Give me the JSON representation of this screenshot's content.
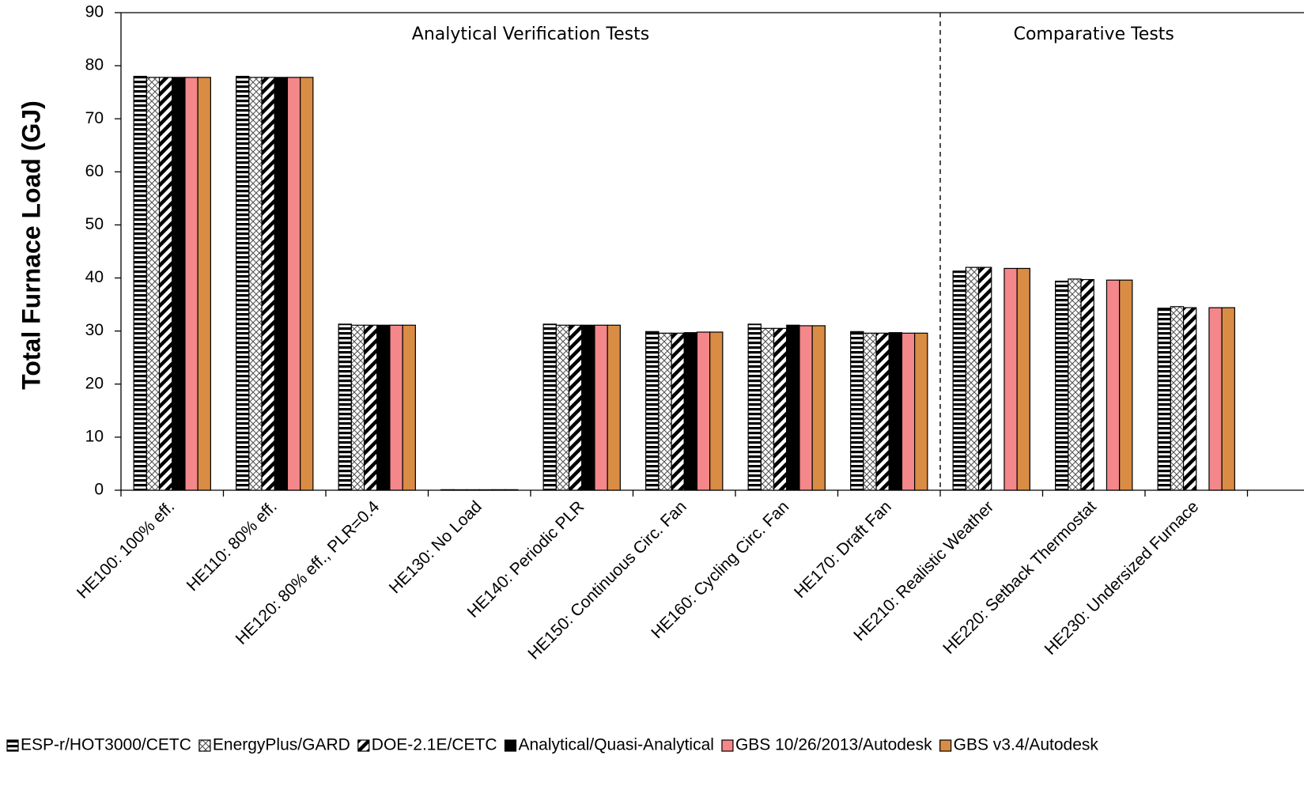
{
  "chart_data": {
    "type": "bar",
    "title": "",
    "xlabel": "",
    "ylabel": "Total Furnace Load (GJ)",
    "ylim": [
      0,
      90
    ],
    "yticks": [
      0,
      10,
      20,
      30,
      40,
      50,
      60,
      70,
      80,
      90
    ],
    "grid": false,
    "legend_position": "bottom",
    "categories": [
      "HE100: 100% eff.",
      "HE110: 80% eff.",
      "HE120: 80% eff., PLR=0.4",
      "HE130: No Load",
      "HE140: Periodic PLR",
      "HE150: Continuous Circ. Fan",
      "HE160: Cycling Circ. Fan",
      "HE170: Draft Fan",
      "HE210: Realistic Weather",
      "HE220: Setback Thermostat",
      "HE230: Undersized Furnace"
    ],
    "regions": [
      {
        "label": "Analytical Verification Tests",
        "from": 0,
        "to": 7
      },
      {
        "label": "Comparative Tests",
        "from": 8,
        "to": 10
      }
    ],
    "series": [
      {
        "name": "ESP-r/HOT3000/CETC",
        "pattern": "horizontal-stripes",
        "color": "#000000",
        "values": [
          78.0,
          78.0,
          31.3,
          0.1,
          31.3,
          29.9,
          31.3,
          29.9,
          41.3,
          39.4,
          34.3
        ]
      },
      {
        "name": "EnergyPlus/GARD",
        "pattern": "crosshatch",
        "color": "#000000",
        "values": [
          77.8,
          77.8,
          31.1,
          0.0,
          31.1,
          29.6,
          30.5,
          29.6,
          42.0,
          39.8,
          34.6
        ]
      },
      {
        "name": "DOE-2.1E/CETC",
        "pattern": "diagonal-stripes",
        "color": "#000000",
        "values": [
          77.8,
          77.8,
          31.1,
          0.0,
          31.1,
          29.6,
          30.5,
          29.6,
          42.0,
          39.7,
          34.4
        ]
      },
      {
        "name": "Analytical/Quasi-Analytical",
        "pattern": "solid",
        "color": "#000000",
        "values": [
          77.8,
          77.8,
          31.1,
          0.0,
          31.1,
          29.7,
          31.1,
          29.7,
          null,
          null,
          null
        ]
      },
      {
        "name": "GBS 10/26/2013/Autodesk",
        "pattern": "solid",
        "color": "#f4878a",
        "values": [
          77.8,
          77.8,
          31.1,
          0.1,
          31.1,
          29.8,
          31.0,
          29.6,
          41.8,
          39.6,
          34.4
        ]
      },
      {
        "name": "GBS v3.4/Autodesk",
        "pattern": "solid",
        "color": "#d98c44",
        "values": [
          77.8,
          77.8,
          31.1,
          0.1,
          31.1,
          29.8,
          31.0,
          29.6,
          41.8,
          39.6,
          34.4
        ]
      }
    ]
  }
}
